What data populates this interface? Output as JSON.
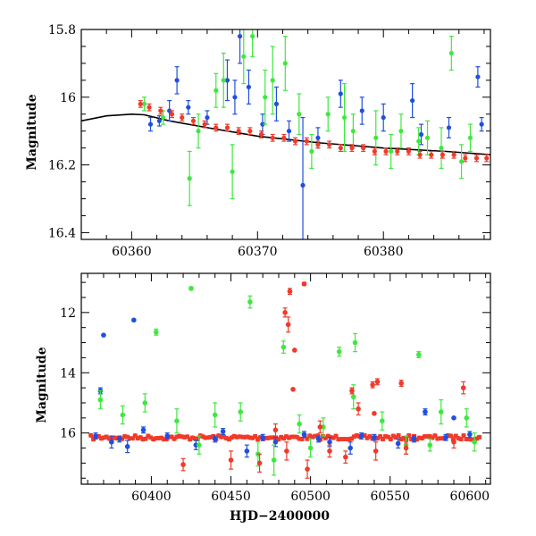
{
  "colors": {
    "blue": "#1f4fe0",
    "green": "#3ee83e",
    "red": "#f03a2a",
    "model": "#000000"
  },
  "chart_data": [
    {
      "type": "scatter",
      "title": "",
      "xlabel": "",
      "ylabel": "Magnitude",
      "xlim": [
        60356,
        60388.5
      ],
      "ylim": [
        16.42,
        15.8
      ],
      "inverted_y": true,
      "xticks": [
        60360,
        60370,
        60380
      ],
      "yticks": [
        15.8,
        16,
        16.2,
        16.4
      ],
      "xtick_labels": [
        "60360",
        "60370",
        "60380"
      ],
      "ytick_labels": [
        "15.8",
        "16",
        "16.2",
        "16.4"
      ],
      "grid": false,
      "model_curve": {
        "x": [
          60356,
          60358,
          60360,
          60361,
          60363,
          60366,
          60370,
          60375,
          60380,
          60385,
          60388.5
        ],
        "y": [
          16.07,
          16.055,
          16.05,
          16.052,
          16.07,
          16.09,
          16.115,
          16.135,
          16.15,
          16.16,
          16.17
        ]
      },
      "series": [
        {
          "color": "blue",
          "points": [
            {
              "x": 60361.5,
              "y": 16.08,
              "e": 0.02
            },
            {
              "x": 60362.2,
              "y": 16.07,
              "e": 0.015
            },
            {
              "x": 60363.0,
              "y": 16.04,
              "e": 0.03
            },
            {
              "x": 60363.6,
              "y": 15.95,
              "e": 0.04
            },
            {
              "x": 60364.5,
              "y": 16.03,
              "e": 0.02
            },
            {
              "x": 60366.0,
              "y": 16.06,
              "e": 0.02
            },
            {
              "x": 60367.6,
              "y": 15.95,
              "e": 0.06
            },
            {
              "x": 60368.2,
              "y": 16.0,
              "e": 0.05
            },
            {
              "x": 60368.6,
              "y": 15.82,
              "e": 0.08
            },
            {
              "x": 60369.3,
              "y": 15.97,
              "e": 0.05
            },
            {
              "x": 60370.4,
              "y": 16.08,
              "e": 0.03
            },
            {
              "x": 60371.5,
              "y": 16.02,
              "e": 0.05
            },
            {
              "x": 60372.5,
              "y": 16.1,
              "e": 0.03
            },
            {
              "x": 60373.6,
              "y": 16.26,
              "e": 0.2
            },
            {
              "x": 60374.8,
              "y": 16.12,
              "e": 0.03
            },
            {
              "x": 60376.6,
              "y": 15.99,
              "e": 0.04
            },
            {
              "x": 60378.3,
              "y": 16.04,
              "e": 0.04
            },
            {
              "x": 60380.0,
              "y": 16.06,
              "e": 0.04
            },
            {
              "x": 60382.3,
              "y": 16.01,
              "e": 0.05
            },
            {
              "x": 60383.0,
              "y": 16.11,
              "e": 0.03
            },
            {
              "x": 60385.2,
              "y": 16.09,
              "e": 0.03
            },
            {
              "x": 60387.5,
              "y": 15.94,
              "e": 0.03
            },
            {
              "x": 60387.8,
              "y": 16.08,
              "e": 0.02
            }
          ]
        },
        {
          "color": "green",
          "points": [
            {
              "x": 60361.0,
              "y": 16.02,
              "e": 0.02
            },
            {
              "x": 60362.5,
              "y": 16.06,
              "e": 0.02
            },
            {
              "x": 60364.6,
              "y": 16.24,
              "e": 0.08
            },
            {
              "x": 60365.3,
              "y": 16.1,
              "e": 0.05
            },
            {
              "x": 60366.7,
              "y": 15.98,
              "e": 0.05
            },
            {
              "x": 60367.3,
              "y": 15.95,
              "e": 0.08
            },
            {
              "x": 60368.0,
              "y": 16.22,
              "e": 0.08
            },
            {
              "x": 60368.9,
              "y": 15.88,
              "e": 0.08
            },
            {
              "x": 60369.6,
              "y": 15.82,
              "e": 0.06
            },
            {
              "x": 60370.6,
              "y": 16.0,
              "e": 0.08
            },
            {
              "x": 60371.2,
              "y": 15.95,
              "e": 0.1
            },
            {
              "x": 60372.2,
              "y": 15.9,
              "e": 0.08
            },
            {
              "x": 60373.3,
              "y": 16.05,
              "e": 0.06
            },
            {
              "x": 60374.3,
              "y": 16.16,
              "e": 0.05
            },
            {
              "x": 60375.6,
              "y": 16.05,
              "e": 0.05
            },
            {
              "x": 60376.9,
              "y": 16.06,
              "e": 0.1
            },
            {
              "x": 60377.6,
              "y": 16.1,
              "e": 0.05
            },
            {
              "x": 60379.4,
              "y": 16.12,
              "e": 0.08
            },
            {
              "x": 60380.6,
              "y": 16.16,
              "e": 0.05
            },
            {
              "x": 60381.4,
              "y": 16.1,
              "e": 0.05
            },
            {
              "x": 60382.8,
              "y": 16.13,
              "e": 0.04
            },
            {
              "x": 60383.5,
              "y": 16.12,
              "e": 0.05
            },
            {
              "x": 60384.6,
              "y": 16.15,
              "e": 0.06
            },
            {
              "x": 60385.4,
              "y": 15.87,
              "e": 0.05
            },
            {
              "x": 60386.2,
              "y": 16.19,
              "e": 0.05
            },
            {
              "x": 60386.9,
              "y": 16.12,
              "e": 0.04
            }
          ]
        },
        {
          "color": "red",
          "points": [
            {
              "x": 60360.7,
              "y": 16.02,
              "e": 0.01
            },
            {
              "x": 60361.4,
              "y": 16.03,
              "e": 0.01
            },
            {
              "x": 60362.3,
              "y": 16.04,
              "e": 0.01
            },
            {
              "x": 60363.2,
              "y": 16.05,
              "e": 0.01
            },
            {
              "x": 60364.0,
              "y": 16.06,
              "e": 0.01
            },
            {
              "x": 60364.9,
              "y": 16.07,
              "e": 0.01
            },
            {
              "x": 60365.8,
              "y": 16.08,
              "e": 0.01
            },
            {
              "x": 60366.7,
              "y": 16.09,
              "e": 0.01
            },
            {
              "x": 60367.6,
              "y": 16.09,
              "e": 0.01
            },
            {
              "x": 60368.5,
              "y": 16.1,
              "e": 0.01
            },
            {
              "x": 60369.4,
              "y": 16.1,
              "e": 0.01
            },
            {
              "x": 60370.3,
              "y": 16.11,
              "e": 0.01
            },
            {
              "x": 60371.2,
              "y": 16.12,
              "e": 0.01
            },
            {
              "x": 60372.1,
              "y": 16.12,
              "e": 0.01
            },
            {
              "x": 60373.0,
              "y": 16.13,
              "e": 0.01
            },
            {
              "x": 60373.9,
              "y": 16.13,
              "e": 0.01
            },
            {
              "x": 60374.8,
              "y": 16.14,
              "e": 0.01
            },
            {
              "x": 60375.7,
              "y": 16.14,
              "e": 0.01
            },
            {
              "x": 60376.6,
              "y": 16.15,
              "e": 0.01
            },
            {
              "x": 60377.5,
              "y": 16.15,
              "e": 0.01
            },
            {
              "x": 60378.4,
              "y": 16.15,
              "e": 0.01
            },
            {
              "x": 60379.3,
              "y": 16.16,
              "e": 0.01
            },
            {
              "x": 60380.2,
              "y": 16.16,
              "e": 0.01
            },
            {
              "x": 60381.1,
              "y": 16.16,
              "e": 0.01
            },
            {
              "x": 60382.0,
              "y": 16.16,
              "e": 0.01
            },
            {
              "x": 60382.9,
              "y": 16.17,
              "e": 0.01
            },
            {
              "x": 60383.8,
              "y": 16.17,
              "e": 0.01
            },
            {
              "x": 60384.7,
              "y": 16.17,
              "e": 0.01
            },
            {
              "x": 60385.6,
              "y": 16.17,
              "e": 0.01
            },
            {
              "x": 60386.5,
              "y": 16.18,
              "e": 0.01
            },
            {
              "x": 60387.4,
              "y": 16.18,
              "e": 0.01
            },
            {
              "x": 60388.2,
              "y": 16.18,
              "e": 0.01
            }
          ]
        }
      ]
    },
    {
      "type": "scatter",
      "title": "",
      "xlabel": "HJD−2400000",
      "ylabel": "Magnitude",
      "xlim": [
        60356,
        60613
      ],
      "ylim": [
        17.7,
        10.7
      ],
      "inverted_y": true,
      "xticks": [
        60400,
        60450,
        60500,
        60550,
        60600
      ],
      "yticks": [
        12,
        14,
        16
      ],
      "xtick_labels": [
        "60400",
        "60450",
        "60500",
        "60550",
        "60600"
      ],
      "ytick_labels": [
        "12",
        "14",
        "16"
      ],
      "grid": false,
      "series": [
        {
          "color": "blue",
          "points": [
            {
              "x": 60370,
              "y": 12.75,
              "e": 0
            },
            {
              "x": 60389,
              "y": 12.25,
              "e": 0
            },
            {
              "x": 60368,
              "y": 14.6,
              "e": 0.1
            },
            {
              "x": 60375,
              "y": 16.3,
              "e": 0.2
            },
            {
              "x": 60385,
              "y": 16.45,
              "e": 0.2
            },
            {
              "x": 60395,
              "y": 15.9,
              "e": 0.1
            },
            {
              "x": 60410,
              "y": 16.1,
              "e": 0.1
            },
            {
              "x": 60428,
              "y": 16.4,
              "e": 0.15
            },
            {
              "x": 60445,
              "y": 15.95,
              "e": 0.1
            },
            {
              "x": 60460,
              "y": 16.6,
              "e": 0.2
            },
            {
              "x": 60478,
              "y": 16.3,
              "e": 0.15
            },
            {
              "x": 60496,
              "y": 16.05,
              "e": 0.1
            },
            {
              "x": 60512,
              "y": 16.3,
              "e": 0.15
            },
            {
              "x": 60525,
              "y": 16.5,
              "e": 0.2
            },
            {
              "x": 60540,
              "y": 16.15,
              "e": 0.1
            },
            {
              "x": 60555,
              "y": 16.35,
              "e": 0.15
            },
            {
              "x": 60572,
              "y": 15.3,
              "e": 0.1
            },
            {
              "x": 60590,
              "y": 15.5,
              "e": 0
            },
            {
              "x": 60600,
              "y": 16.05,
              "e": 0.1
            },
            {
              "x": 60365,
              "y": 16.1,
              "e": 0.1
            },
            {
              "x": 60380,
              "y": 16.2,
              "e": 0.1
            },
            {
              "x": 60440,
              "y": 16.2,
              "e": 0.1
            },
            {
              "x": 60470,
              "y": 16.15,
              "e": 0.1
            },
            {
              "x": 60505,
              "y": 16.2,
              "e": 0.1
            },
            {
              "x": 60532,
              "y": 16.1,
              "e": 0.1
            },
            {
              "x": 60565,
              "y": 16.2,
              "e": 0.1
            },
            {
              "x": 60585,
              "y": 16.15,
              "e": 0.1
            }
          ]
        },
        {
          "color": "green",
          "points": [
            {
              "x": 60425,
              "y": 11.2,
              "e": 0.05
            },
            {
              "x": 60403,
              "y": 12.65,
              "e": 0.1
            },
            {
              "x": 60462,
              "y": 11.65,
              "e": 0.2
            },
            {
              "x": 60483,
              "y": 13.15,
              "e": 0.2
            },
            {
              "x": 60518,
              "y": 13.3,
              "e": 0.15
            },
            {
              "x": 60528,
              "y": 13.0,
              "e": 0.3
            },
            {
              "x": 60568,
              "y": 13.4,
              "e": 0.1
            },
            {
              "x": 60368,
              "y": 14.9,
              "e": 0.3
            },
            {
              "x": 60382,
              "y": 15.4,
              "e": 0.3
            },
            {
              "x": 60396,
              "y": 15.0,
              "e": 0.3
            },
            {
              "x": 60416,
              "y": 15.6,
              "e": 0.4
            },
            {
              "x": 60440,
              "y": 15.4,
              "e": 0.4
            },
            {
              "x": 60456,
              "y": 15.3,
              "e": 0.3
            },
            {
              "x": 60467,
              "y": 16.7,
              "e": 0.4
            },
            {
              "x": 60477,
              "y": 16.9,
              "e": 0.5
            },
            {
              "x": 60493,
              "y": 15.7,
              "e": 0.3
            },
            {
              "x": 60508,
              "y": 15.8,
              "e": 0.3
            },
            {
              "x": 60527,
              "y": 14.8,
              "e": 0.4
            },
            {
              "x": 60545,
              "y": 15.6,
              "e": 0.3
            },
            {
              "x": 60560,
              "y": 16.4,
              "e": 0.3
            },
            {
              "x": 60582,
              "y": 15.3,
              "e": 0.4
            },
            {
              "x": 60598,
              "y": 15.5,
              "e": 0.3
            },
            {
              "x": 60603,
              "y": 16.3,
              "e": 0.3
            },
            {
              "x": 60430,
              "y": 16.4,
              "e": 0.3
            },
            {
              "x": 60500,
              "y": 16.5,
              "e": 0.3
            },
            {
              "x": 60575,
              "y": 16.4,
              "e": 0.2
            }
          ]
        },
        {
          "color": "red",
          "points": [
            {
              "x": 60487,
              "y": 11.3,
              "e": 0.1
            },
            {
              "x": 60496,
              "y": 11.05,
              "e": 0.05
            },
            {
              "x": 60486,
              "y": 12.4,
              "e": 0.25
            },
            {
              "x": 60484,
              "y": 12.0,
              "e": 0.15
            },
            {
              "x": 60490,
              "y": 13.25,
              "e": 0
            },
            {
              "x": 60489,
              "y": 14.55,
              "e": 0
            },
            {
              "x": 60526,
              "y": 14.6,
              "e": 0.1
            },
            {
              "x": 60539,
              "y": 14.4,
              "e": 0.1
            },
            {
              "x": 60542,
              "y": 14.3,
              "e": 0.1
            },
            {
              "x": 60557,
              "y": 14.35,
              "e": 0.1
            },
            {
              "x": 60596,
              "y": 14.5,
              "e": 0.2
            },
            {
              "x": 60530,
              "y": 15.2,
              "e": 0.2
            },
            {
              "x": 60540,
              "y": 15.35,
              "e": 0
            },
            {
              "x": 60420,
              "y": 17.05,
              "e": 0.2
            },
            {
              "x": 60450,
              "y": 16.9,
              "e": 0.3
            },
            {
              "x": 60468,
              "y": 17.0,
              "e": 0.3
            },
            {
              "x": 60485,
              "y": 16.6,
              "e": 0.3
            },
            {
              "x": 60498,
              "y": 17.2,
              "e": 0.3
            },
            {
              "x": 60512,
              "y": 16.6,
              "e": 0.2
            },
            {
              "x": 60522,
              "y": 16.8,
              "e": 0.2
            },
            {
              "x": 60541,
              "y": 16.6,
              "e": 0.3
            },
            {
              "x": 60560,
              "y": 16.5,
              "e": 0.2
            },
            {
              "x": 60590,
              "y": 16.3,
              "e": 0.2
            },
            {
              "x": 60478,
              "y": 15.9,
              "e": 0.2
            },
            {
              "x": 60506,
              "y": 15.8,
              "e": 0.2
            }
          ]
        }
      ],
      "band": {
        "color": "red",
        "x_start": 60362,
        "x_end": 60606,
        "y_center": 16.15,
        "scatter": 0.07,
        "count": 150
      }
    }
  ]
}
